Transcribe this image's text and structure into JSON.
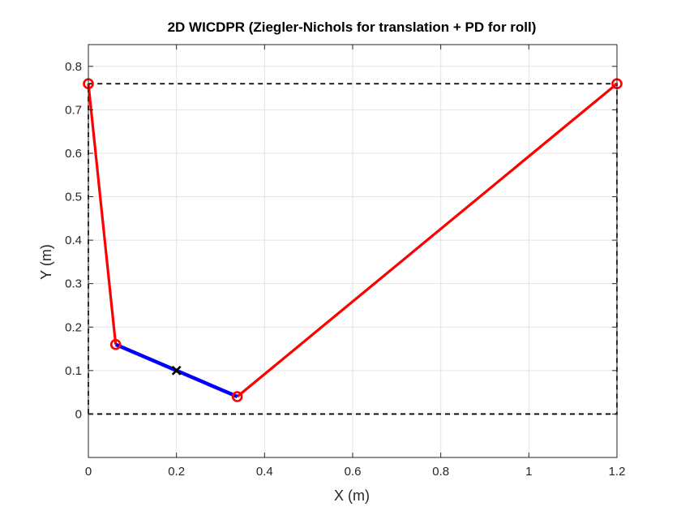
{
  "chart_data": {
    "type": "line",
    "title": "2D WICDPR (Ziegler-Nichols for translation + PD for roll)",
    "xlabel": "X (m)",
    "ylabel": "Y (m)",
    "xlim": [
      0,
      1.2
    ],
    "ylim": [
      -0.1,
      0.85
    ],
    "xticks": [
      0,
      0.2,
      0.4,
      0.6,
      0.8,
      1,
      1.2
    ],
    "xtick_labels": [
      "0",
      "0.2",
      "0.4",
      "0.6",
      "0.8",
      "1",
      "1.2"
    ],
    "yticks": [
      0,
      0.1,
      0.2,
      0.3,
      0.4,
      0.5,
      0.6,
      0.7,
      0.8
    ],
    "ytick_labels": [
      "0",
      "0.1",
      "0.2",
      "0.3",
      "0.4",
      "0.5",
      "0.6",
      "0.7",
      "0.8"
    ],
    "grid": true,
    "workspace_boundary": {
      "style": "dashed",
      "color": "#000000",
      "x": [
        0,
        1.2,
        1.2,
        0,
        0
      ],
      "y": [
        0,
        0,
        0.76,
        0.76,
        0
      ]
    },
    "cables": [
      {
        "color": "#ff0000",
        "x": [
          0,
          0.062
        ],
        "y": [
          0.76,
          0.16
        ]
      },
      {
        "color": "#ff0000",
        "x": [
          1.2,
          0.338
        ],
        "y": [
          0.76,
          0.04
        ]
      }
    ],
    "platform": {
      "color": "#0000ff",
      "x": [
        0.062,
        0.338
      ],
      "y": [
        0.16,
        0.04
      ]
    },
    "anchor_points": {
      "marker": "circle",
      "color": "#ff0000",
      "x": [
        0,
        1.2,
        0.062,
        0.338
      ],
      "y": [
        0.76,
        0.76,
        0.16,
        0.04
      ]
    },
    "center": {
      "marker": "x",
      "color": "#000000",
      "x": 0.2,
      "y": 0.1
    }
  }
}
